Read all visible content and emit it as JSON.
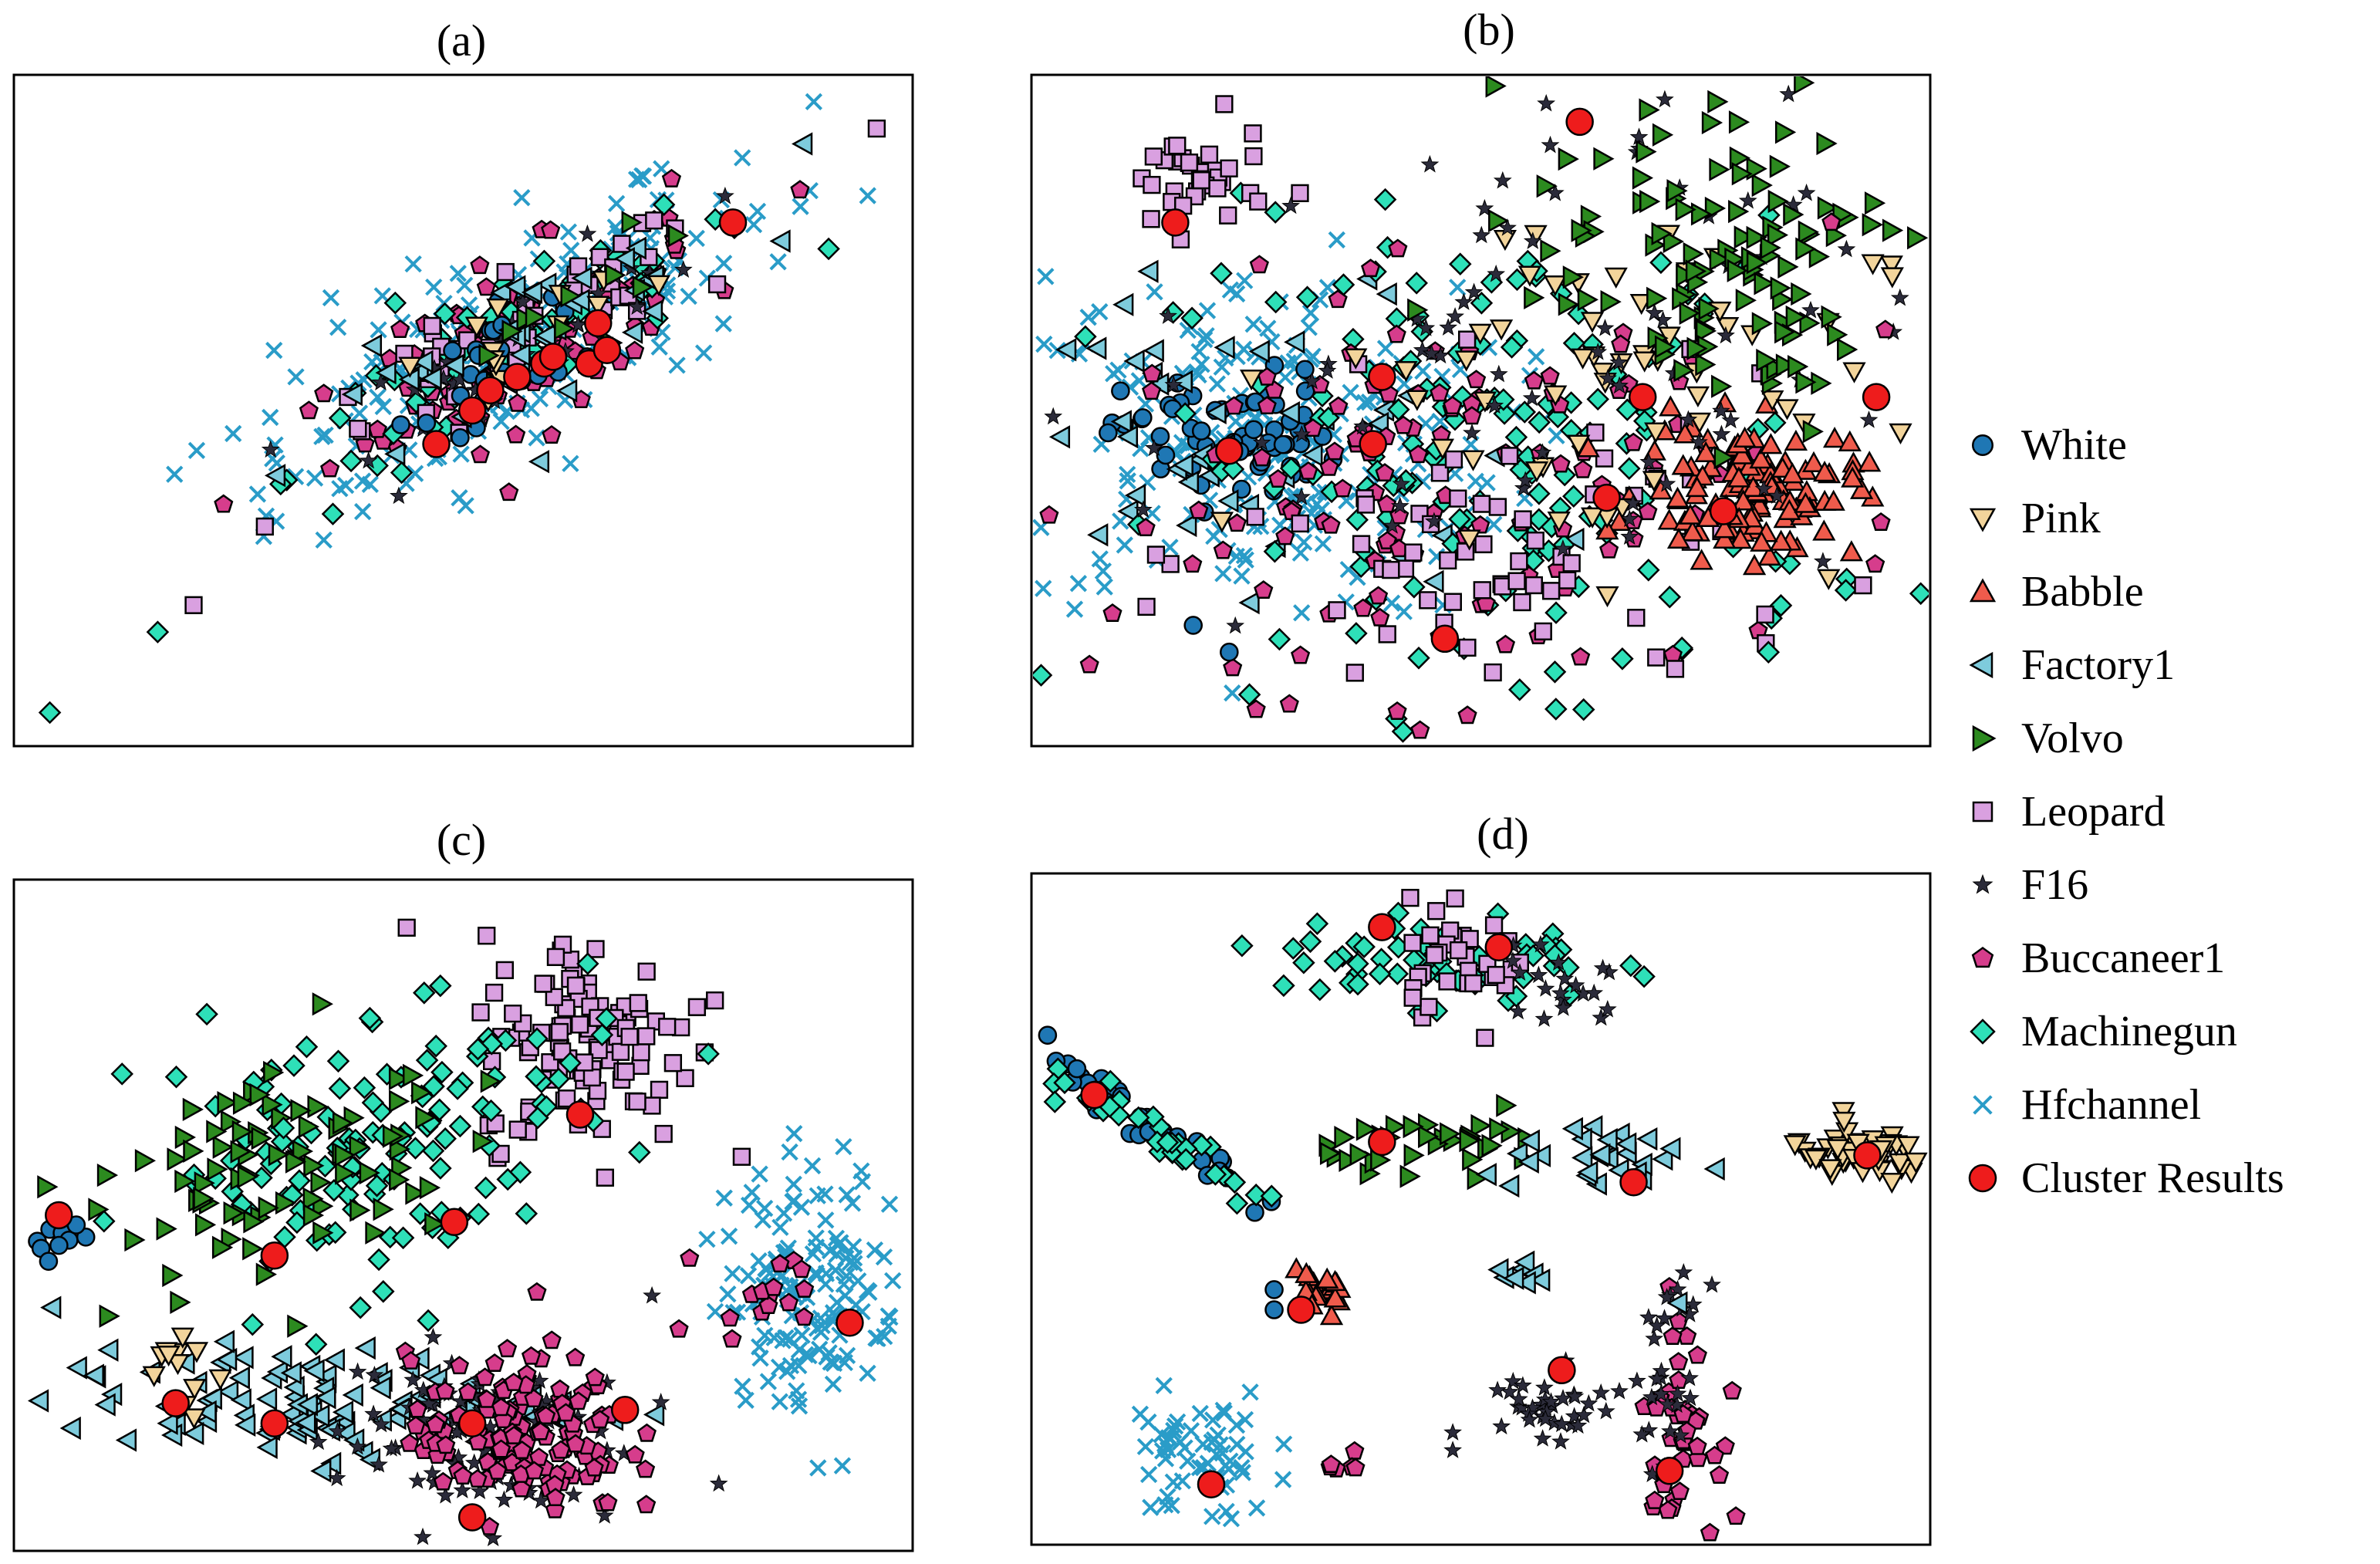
{
  "chart_data": {
    "type": "scatter",
    "legend_position": "right",
    "grid": false,
    "axes_ticks": "none",
    "series": [
      {
        "name": "White",
        "marker": "circle",
        "color": "#1f77b4"
      },
      {
        "name": "Pink",
        "marker": "triangle-down",
        "color": "#f2d49b"
      },
      {
        "name": "Babble",
        "marker": "triangle-up",
        "color": "#ef5b4c"
      },
      {
        "name": "Factory1",
        "marker": "triangle-left",
        "color": "#7ecbdc"
      },
      {
        "name": "Volvo",
        "marker": "triangle-right",
        "color": "#2c8a1f"
      },
      {
        "name": "Leopard",
        "marker": "square",
        "color": "#d9a0e0"
      },
      {
        "name": "F16",
        "marker": "star",
        "color": "#2b2b3a"
      },
      {
        "name": "Buccaneer1",
        "marker": "pentagon",
        "color": "#d63d8c"
      },
      {
        "name": "Machinegun",
        "marker": "diamond",
        "color": "#2ee0b8"
      },
      {
        "name": "Hfchannel",
        "marker": "x",
        "color": "#2a9cc8"
      },
      {
        "name": "Cluster Results",
        "marker": "big-circle",
        "color": "#ee1c1c"
      }
    ],
    "panels": [
      {
        "title": "(a)",
        "xlim": [
          0,
          100
        ],
        "ylim": [
          0,
          100
        ],
        "clusters": [
          {
            "series": "Hfchannel",
            "x": 55,
            "y": 60,
            "sx": 18,
            "sy": 7,
            "n": 220,
            "rot": 38
          },
          {
            "series": "Buccaneer1",
            "x": 56,
            "y": 60,
            "sx": 14,
            "sy": 5,
            "n": 90,
            "rot": 38
          },
          {
            "series": "Machinegun",
            "x": 56,
            "y": 60,
            "sx": 16,
            "sy": 4,
            "n": 80,
            "rot": 38
          },
          {
            "series": "Leopard",
            "x": 57,
            "y": 60,
            "sx": 15,
            "sy": 4,
            "n": 50,
            "rot": 38
          },
          {
            "series": "F16",
            "x": 58,
            "y": 62,
            "sx": 12,
            "sy": 4,
            "n": 40,
            "rot": 38
          },
          {
            "series": "White",
            "x": 55,
            "y": 58,
            "sx": 7,
            "sy": 3,
            "n": 25,
            "rot": 38
          },
          {
            "series": "Factory1",
            "x": 55,
            "y": 60,
            "sx": 14,
            "sy": 4,
            "n": 40,
            "rot": 38
          },
          {
            "series": "Pink",
            "x": 58,
            "y": 62,
            "sx": 9,
            "sy": 3,
            "n": 15,
            "rot": 38
          },
          {
            "series": "Volvo",
            "x": 58,
            "y": 62,
            "sx": 9,
            "sy": 3,
            "n": 12,
            "rot": 38
          }
        ],
        "points": [
          {
            "series": "Machinegun",
            "x": 4,
            "y": 5
          },
          {
            "series": "Machinegun",
            "x": 16,
            "y": 17
          },
          {
            "series": "Leopard",
            "x": 20,
            "y": 21
          },
          {
            "series": "Leopard",
            "x": 96,
            "y": 92
          },
          {
            "series": "Hfchannel",
            "x": 89,
            "y": 96
          },
          {
            "series": "Hfchannel",
            "x": 95,
            "y": 82
          }
        ],
        "centers": [
          {
            "x": 47,
            "y": 45
          },
          {
            "x": 51,
            "y": 50
          },
          {
            "x": 53,
            "y": 53
          },
          {
            "x": 56,
            "y": 55
          },
          {
            "x": 59,
            "y": 57
          },
          {
            "x": 60,
            "y": 58
          },
          {
            "x": 64,
            "y": 57
          },
          {
            "x": 66,
            "y": 59
          },
          {
            "x": 65,
            "y": 63
          },
          {
            "x": 80,
            "y": 78
          }
        ]
      },
      {
        "title": "(b)",
        "xlim": [
          0,
          100
        ],
        "ylim": [
          0,
          100
        ],
        "clusters": [
          {
            "series": "Hfchannel",
            "x": 25,
            "y": 45,
            "sx": 14,
            "sy": 13,
            "n": 240,
            "rot": 0
          },
          {
            "series": "White",
            "x": 22,
            "y": 46,
            "sx": 6,
            "sy": 5,
            "n": 60,
            "rot": 0
          },
          {
            "series": "Factory1",
            "x": 24,
            "y": 44,
            "sx": 16,
            "sy": 14,
            "n": 50,
            "rot": 0
          },
          {
            "series": "Machinegun",
            "x": 52,
            "y": 42,
            "sx": 18,
            "sy": 18,
            "n": 170,
            "rot": 0
          },
          {
            "series": "Buccaneer1",
            "x": 45,
            "y": 38,
            "sx": 18,
            "sy": 15,
            "n": 130,
            "rot": 0
          },
          {
            "series": "Leopard",
            "x": 55,
            "y": 28,
            "sx": 16,
            "sy": 12,
            "n": 70,
            "rot": 0
          },
          {
            "series": "Leopard",
            "x": 18,
            "y": 84,
            "sx": 4,
            "sy": 4,
            "n": 35,
            "rot": 0
          },
          {
            "series": "Babble",
            "x": 80,
            "y": 38,
            "sx": 6,
            "sy": 5,
            "n": 120,
            "rot": 0
          },
          {
            "series": "Pink",
            "x": 62,
            "y": 55,
            "sx": 16,
            "sy": 14,
            "n": 60,
            "rot": 0
          },
          {
            "series": "F16",
            "x": 55,
            "y": 55,
            "sx": 22,
            "sy": 20,
            "n": 90,
            "rot": 0
          },
          {
            "series": "Volvo",
            "x": 76,
            "y": 80,
            "sx": 10,
            "sy": 10,
            "n": 80,
            "rot": 0
          },
          {
            "series": "Volvo",
            "x": 80,
            "y": 62,
            "sx": 6,
            "sy": 8,
            "n": 40,
            "rot": 0
          }
        ],
        "points": [
          {
            "series": "Machinegun",
            "x": 6,
            "y": 61
          },
          {
            "series": "White",
            "x": 18,
            "y": 18
          },
          {
            "series": "White",
            "x": 22,
            "y": 14
          },
          {
            "series": "Buccaneer1",
            "x": 89,
            "y": 78
          },
          {
            "series": "Buccaneer1",
            "x": 95,
            "y": 62
          },
          {
            "series": "Machinegun",
            "x": 82,
            "y": 14
          }
        ],
        "centers": [
          {
            "x": 16,
            "y": 78
          },
          {
            "x": 22,
            "y": 44
          },
          {
            "x": 39,
            "y": 55
          },
          {
            "x": 38,
            "y": 45
          },
          {
            "x": 46,
            "y": 16
          },
          {
            "x": 61,
            "y": 93
          },
          {
            "x": 68,
            "y": 52
          },
          {
            "x": 64,
            "y": 37
          },
          {
            "x": 77,
            "y": 35
          },
          {
            "x": 94,
            "y": 52
          }
        ]
      },
      {
        "title": "(c)",
        "xlim": [
          0,
          100
        ],
        "ylim": [
          0,
          100
        ],
        "clusters": [
          {
            "series": "Leopard",
            "x": 64,
            "y": 76,
            "sx": 6,
            "sy": 8,
            "n": 110,
            "rot": 0
          },
          {
            "series": "Machinegun",
            "x": 40,
            "y": 62,
            "sx": 14,
            "sy": 10,
            "n": 130,
            "rot": 30
          },
          {
            "series": "Volvo",
            "x": 30,
            "y": 57,
            "sx": 10,
            "sy": 7,
            "n": 90,
            "rot": 30
          },
          {
            "series": "Factory1",
            "x": 32,
            "y": 22,
            "sx": 14,
            "sy": 4,
            "n": 110,
            "rot": 0
          },
          {
            "series": "F16",
            "x": 52,
            "y": 17,
            "sx": 8,
            "sy": 7,
            "n": 110,
            "rot": 0
          },
          {
            "series": "Buccaneer1",
            "x": 56,
            "y": 17,
            "sx": 6,
            "sy": 6,
            "n": 140,
            "rot": 0
          },
          {
            "series": "Hfchannel",
            "x": 89,
            "y": 40,
            "sx": 5,
            "sy": 9,
            "n": 150,
            "rot": 0
          },
          {
            "series": "Buccaneer1",
            "x": 84,
            "y": 40,
            "sx": 3,
            "sy": 4,
            "n": 15,
            "rot": 0
          },
          {
            "series": "White",
            "x": 5,
            "y": 47,
            "sx": 1,
            "sy": 2,
            "n": 10,
            "rot": -40
          },
          {
            "series": "Pink",
            "x": 18,
            "y": 26,
            "sx": 2,
            "sy": 4,
            "n": 12,
            "rot": 0
          }
        ],
        "points": [
          {
            "series": "Machinegun",
            "x": 39,
            "y": 69
          },
          {
            "series": "Machinegun",
            "x": 30,
            "y": 63
          },
          {
            "series": "Leopard",
            "x": 76,
            "y": 81
          },
          {
            "series": "Leopard",
            "x": 78,
            "y": 82
          },
          {
            "series": "F16",
            "x": 71,
            "y": 38
          },
          {
            "series": "Buccaneer1",
            "x": 74,
            "y": 33
          }
        ],
        "centers": [
          {
            "x": 5,
            "y": 50
          },
          {
            "x": 18,
            "y": 22
          },
          {
            "x": 29,
            "y": 19
          },
          {
            "x": 29,
            "y": 44
          },
          {
            "x": 49,
            "y": 49
          },
          {
            "x": 63,
            "y": 65
          },
          {
            "x": 51,
            "y": 19
          },
          {
            "x": 68,
            "y": 21
          },
          {
            "x": 51,
            "y": 5
          },
          {
            "x": 93,
            "y": 34
          }
        ]
      },
      {
        "title": "(d)",
        "xlim": [
          0,
          100
        ],
        "ylim": [
          0,
          100
        ],
        "clusters": [
          {
            "series": "Machinegun",
            "x": 45,
            "y": 87,
            "sx": 9,
            "sy": 4,
            "n": 60,
            "rot": 0
          },
          {
            "series": "Leopard",
            "x": 48,
            "y": 88,
            "sx": 4,
            "sy": 4,
            "n": 35,
            "rot": 0
          },
          {
            "series": "F16",
            "x": 58,
            "y": 83,
            "sx": 4,
            "sy": 3,
            "n": 20,
            "rot": -40
          },
          {
            "series": "White",
            "x": 12,
            "y": 63,
            "sx": 8,
            "sy": 1.5,
            "n": 35,
            "rot": -40
          },
          {
            "series": "Machinegun",
            "x": 14,
            "y": 61,
            "sx": 9,
            "sy": 1.5,
            "n": 35,
            "rot": -40
          },
          {
            "series": "Volvo",
            "x": 47,
            "y": 60,
            "sx": 7,
            "sy": 2,
            "n": 35,
            "rot": 0
          },
          {
            "series": "Factory1",
            "x": 65,
            "y": 57,
            "sx": 7,
            "sy": 2,
            "n": 30,
            "rot": 0
          },
          {
            "series": "Pink",
            "x": 92,
            "y": 58,
            "sx": 4,
            "sy": 2,
            "n": 45,
            "rot": 0
          },
          {
            "series": "Babble",
            "x": 32,
            "y": 37,
            "sx": 2,
            "sy": 2,
            "n": 20,
            "rot": 0
          },
          {
            "series": "Hfchannel",
            "x": 19,
            "y": 13,
            "sx": 4,
            "sy": 5,
            "n": 60,
            "rot": 0
          },
          {
            "series": "F16",
            "x": 56,
            "y": 21,
            "sx": 4,
            "sy": 3,
            "n": 35,
            "rot": 20
          },
          {
            "series": "Buccaneer1",
            "x": 72,
            "y": 18,
            "sx": 2,
            "sy": 8,
            "n": 45,
            "rot": 0
          },
          {
            "series": "F16",
            "x": 71,
            "y": 24,
            "sx": 2,
            "sy": 7,
            "n": 30,
            "rot": 0
          },
          {
            "series": "Buccaneer1",
            "x": 34,
            "y": 12,
            "sx": 1,
            "sy": 1,
            "n": 6,
            "rot": 0
          },
          {
            "series": "Factory1",
            "x": 55,
            "y": 40,
            "sx": 2,
            "sy": 1,
            "n": 8,
            "rot": 0
          }
        ],
        "points": [
          {
            "series": "White",
            "x": 27,
            "y": 38
          },
          {
            "series": "White",
            "x": 27,
            "y": 35
          },
          {
            "series": "F16",
            "x": 62,
            "y": 21
          },
          {
            "series": "Factory1",
            "x": 72,
            "y": 36
          }
        ],
        "centers": [
          {
            "x": 39,
            "y": 92
          },
          {
            "x": 52,
            "y": 89
          },
          {
            "x": 7,
            "y": 67
          },
          {
            "x": 39,
            "y": 60
          },
          {
            "x": 67,
            "y": 54
          },
          {
            "x": 93,
            "y": 58
          },
          {
            "x": 30,
            "y": 35
          },
          {
            "x": 59,
            "y": 26
          },
          {
            "x": 20,
            "y": 9
          },
          {
            "x": 71,
            "y": 11
          }
        ]
      }
    ]
  }
}
